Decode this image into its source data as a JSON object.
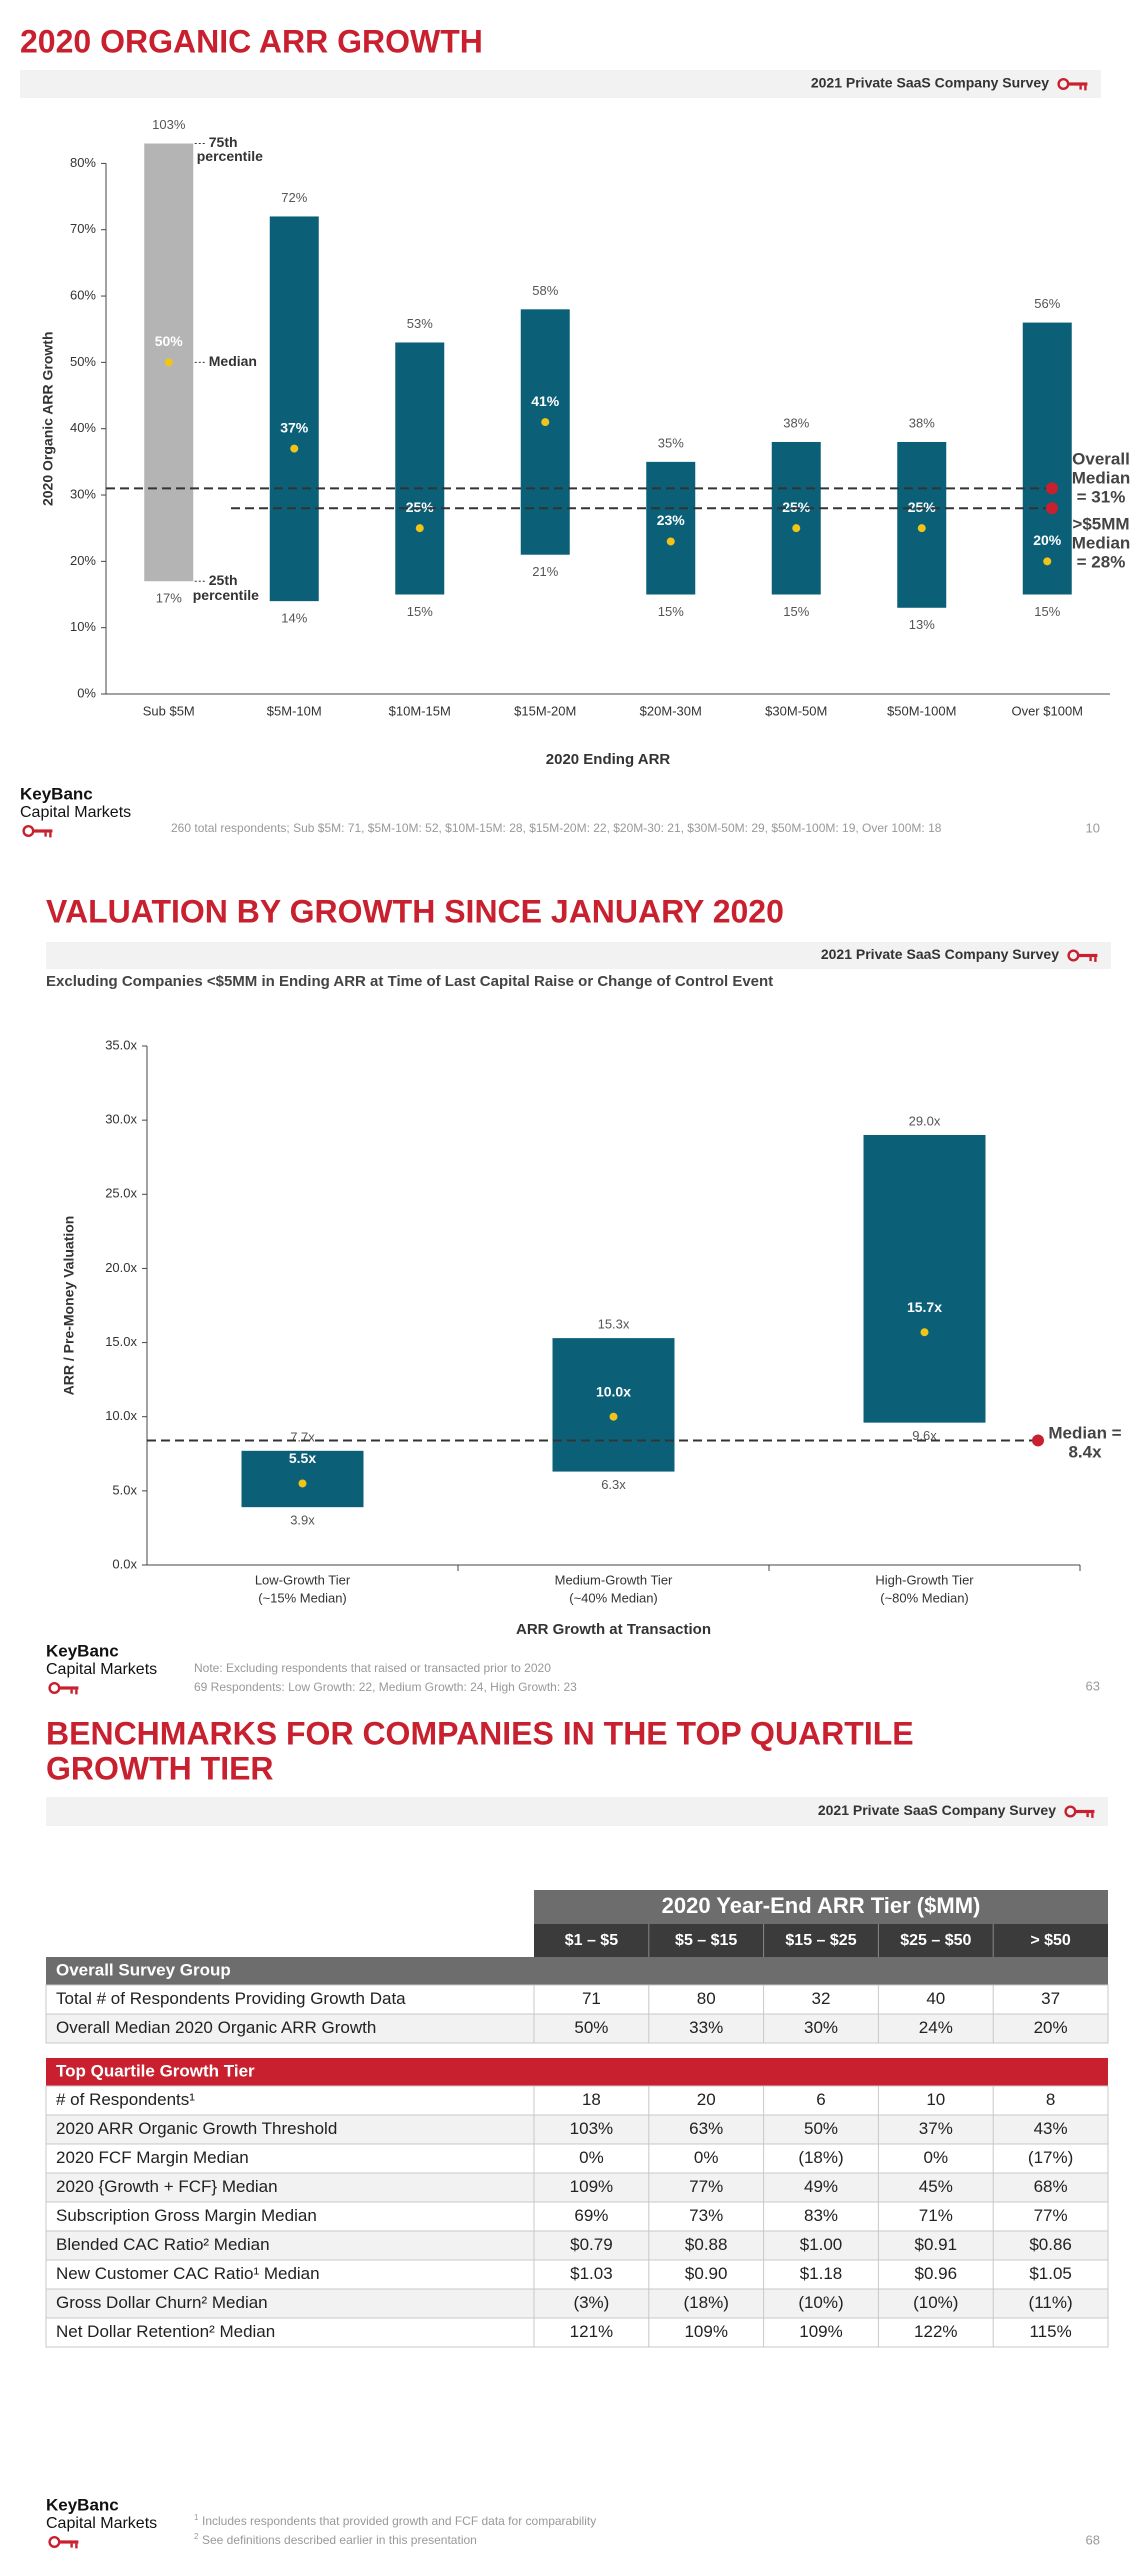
{
  "chart_data": [
    {
      "type": "range_bar",
      "title": "2020 ORGANIC ARR GROWTH",
      "banner": "2021 Private SaaS Company Survey",
      "x_label": "2020 Ending ARR",
      "y_label": "2020 Organic ARR Growth",
      "categories": [
        "Sub $5M",
        "$5M-10M",
        "$10M-15M",
        "$15M-20M",
        "$20M-30M",
        "$30M-50M",
        "$50M-100M",
        "Over $100M"
      ],
      "low": [
        17,
        14,
        15,
        21,
        15,
        15,
        13,
        15
      ],
      "low_labels": [
        "17%",
        "14%",
        "15%",
        "21%",
        "15%",
        "15%",
        "13%",
        "15%"
      ],
      "high": [
        103,
        72,
        53,
        58,
        35,
        38,
        38,
        56
      ],
      "high_labels": [
        "103%",
        "72%",
        "53%",
        "58%",
        "35%",
        "38%",
        "38%",
        "56%"
      ],
      "median": [
        50,
        37,
        25,
        41,
        23,
        25,
        25,
        20
      ],
      "median_labels": [
        "50%",
        "37%",
        "25%",
        "41%",
        "23%",
        "25%",
        "25%",
        "20%"
      ],
      "bar_colors": [
        "#b4b4b4",
        "#0b6078",
        "#0b6078",
        "#0b6078",
        "#0b6078",
        "#0b6078",
        "#0b6078",
        "#0b6078"
      ],
      "median_color": "#f2c318",
      "ylim": [
        0,
        83
      ],
      "yticks": [
        {
          "value": 0,
          "label": "0%"
        },
        {
          "value": 10,
          "label": "10%"
        },
        {
          "value": 20,
          "label": "20%"
        },
        {
          "value": 30,
          "label": "30%"
        },
        {
          "value": 40,
          "label": "40%"
        },
        {
          "value": 50,
          "label": "50%"
        },
        {
          "value": 60,
          "label": "60%"
        },
        {
          "value": 70,
          "label": "70%"
        },
        {
          "value": 80,
          "label": "80%"
        }
      ],
      "reference_lines": [
        {
          "value": 31,
          "label": [
            "Overall",
            "Median",
            "= 31%"
          ]
        },
        {
          "value": 28,
          "label": [
            ">$5MM",
            "Median",
            "= 28%"
          ]
        }
      ],
      "reference_color": "#c8202f",
      "annotations": [
        "75th",
        "percentile",
        "Median",
        "25th",
        "percentile"
      ],
      "logo": [
        "KeyBanc",
        "Capital Markets"
      ],
      "notes": [
        "260 total respondents; Sub $5M: 71, $5M-10M: 52, $10M-15M: 28, $15M-20M: 22, $20M-30: 21, $30M-50M: 29, $50M-100M: 19, Over 100M: 18"
      ],
      "page": 10
    },
    {
      "type": "range_bar",
      "title": "VALUATION BY GROWTH SINCE JANUARY 2020",
      "banner": "2021 Private SaaS Company Survey",
      "subtitle": "Excluding Companies <$5MM in Ending ARR at Time of Last Capital Raise or Change of Control Event",
      "x_label": "ARR Growth at Transaction",
      "y_label": "ARR / Pre-Money Valuation",
      "categories": [
        "Low-Growth Tier",
        "Medium-Growth Tier",
        "High-Growth Tier"
      ],
      "category_notes": [
        "(~15% Median)",
        "(~40% Median)",
        "(~80% Median)"
      ],
      "low": [
        3.9,
        6.3,
        9.6
      ],
      "low_labels": [
        "3.9x",
        "6.3x",
        "9.6x"
      ],
      "high": [
        7.7,
        15.3,
        29.0
      ],
      "high_labels": [
        "7.7x",
        "15.3x",
        "29.0x"
      ],
      "median": [
        5.5,
        10.0,
        15.7
      ],
      "median_labels": [
        "5.5x",
        "10.0x",
        "15.7x"
      ],
      "bar_colors": [
        "#0b6078",
        "#0b6078",
        "#0b6078"
      ],
      "median_color": "#f2c318",
      "ylim": [
        0,
        35
      ],
      "yticks": [
        {
          "value": 0,
          "label": "0.0x"
        },
        {
          "value": 5,
          "label": "5.0x"
        },
        {
          "value": 10,
          "label": "10.0x"
        },
        {
          "value": 15,
          "label": "15.0x"
        },
        {
          "value": 20,
          "label": "20.0x"
        },
        {
          "value": 25,
          "label": "25.0x"
        },
        {
          "value": 30,
          "label": "30.0x"
        },
        {
          "value": 35,
          "label": "35.0x"
        }
      ],
      "reference_lines": [
        {
          "value": 8.4,
          "label": [
            "Median =",
            "8.4x"
          ]
        }
      ],
      "reference_color": "#c8202f",
      "logo": [
        "KeyBanc",
        "Capital Markets"
      ],
      "notes": [
        "Note: Excluding respondents that raised or transacted prior to 2020",
        "69 Respondents: Low Growth: 22, Medium Growth: 24, High Growth: 23"
      ],
      "page": 63
    }
  ],
  "slide3": {
    "title": [
      "BENCHMARKS FOR COMPANIES IN THE TOP QUARTILE",
      "GROWTH TIER"
    ],
    "banner": "2021 Private SaaS Company Survey",
    "table": {
      "header": "2020 Year-End ARR Tier ($MM)",
      "columns": [
        "$1 – $5",
        "$5 – $15",
        "$15 – $25",
        "$25 – $50",
        "> $50"
      ],
      "sections": [
        {
          "name": "Overall Survey Group",
          "rows": [
            {
              "label": "Total # of Respondents Providing Growth Data",
              "cells": [
                "71",
                "80",
                "32",
                "40",
                "37"
              ]
            },
            {
              "label": "Overall Median 2020 Organic ARR Growth",
              "cells": [
                "50%",
                "33%",
                "30%",
                "24%",
                "20%"
              ]
            }
          ]
        },
        {
          "name": "Top Quartile Growth Tier",
          "rows": [
            {
              "label": "# of Respondents¹",
              "cells": [
                "18",
                "20",
                "6",
                "10",
                "8"
              ]
            },
            {
              "label": "2020 ARR Organic Growth Threshold",
              "cells": [
                "103%",
                "63%",
                "50%",
                "37%",
                "43%"
              ]
            },
            {
              "label": "2020 FCF Margin Median",
              "cells": [
                "0%",
                "0%",
                "(18%)",
                "0%",
                "(17%)"
              ]
            },
            {
              "label": "2020 {Growth + FCF} Median",
              "cells": [
                "109%",
                "77%",
                "49%",
                "45%",
                "68%"
              ]
            },
            {
              "label": "Subscription Gross Margin Median",
              "cells": [
                "69%",
                "73%",
                "83%",
                "71%",
                "77%"
              ]
            },
            {
              "label": "Blended CAC Ratio² Median",
              "cells": [
                "$0.79",
                "$0.88",
                "$1.00",
                "$0.91",
                "$0.86"
              ]
            },
            {
              "label": "New Customer CAC Ratio¹ Median",
              "cells": [
                "$1.03",
                "$0.90",
                "$1.18",
                "$0.96",
                "$1.05"
              ]
            },
            {
              "label": "Gross Dollar Churn² Median",
              "cells": [
                "(3%)",
                "(18%)",
                "(10%)",
                "(10%)",
                "(11%)"
              ]
            },
            {
              "label": "Net Dollar Retention² Median",
              "cells": [
                "121%",
                "109%",
                "109%",
                "122%",
                "115%"
              ]
            }
          ]
        }
      ]
    },
    "logo": [
      "KeyBanc",
      "Capital Markets"
    ],
    "notes": [
      {
        "marker": "1",
        "text": "Includes respondents that provided growth and FCF data for comparability"
      },
      {
        "marker": "2",
        "text": "See definitions described earlier in this presentation"
      }
    ],
    "page": 68
  }
}
